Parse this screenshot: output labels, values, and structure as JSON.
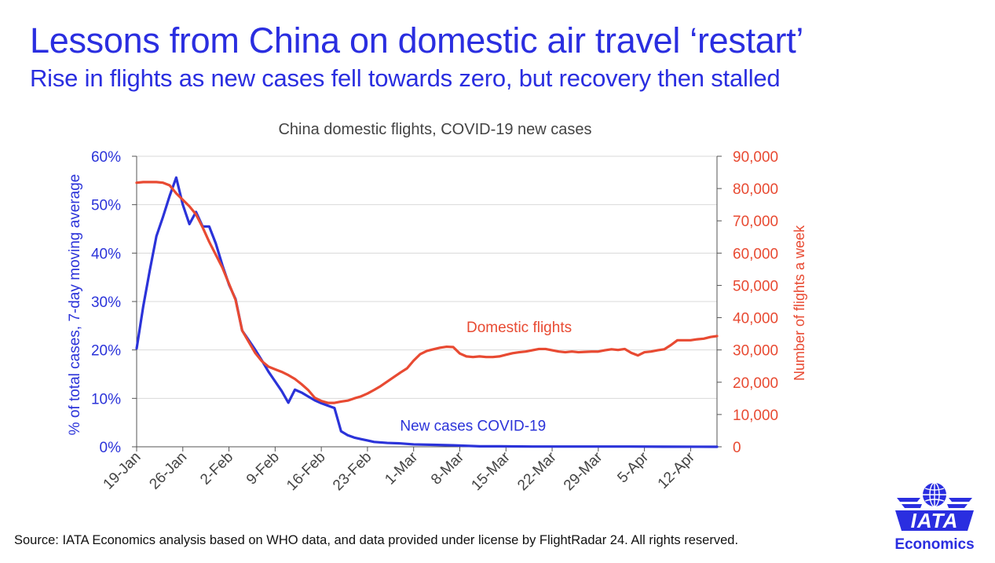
{
  "page": {
    "title": "Lessons from China on domestic air travel ‘restart’",
    "subtitle": "Rise in flights as new cases fell towards zero, but recovery then stalled",
    "source": "Source: IATA Economics analysis based on WHO data, and data provided under license by FlightRadar 24. All rights reserved.",
    "logo": {
      "word": "IATA",
      "sub": "Economics"
    }
  },
  "chart_data": {
    "type": "line",
    "title": "China domestic flights, COVID-19 new cases",
    "x_axis": {
      "start": "19-Jan",
      "end_day": 88,
      "tick_labels": [
        "19-Jan",
        "26-Jan",
        "2-Feb",
        "9-Feb",
        "16-Feb",
        "23-Feb",
        "1-Mar",
        "8-Mar",
        "15-Mar",
        "22-Mar",
        "29-Mar",
        "5-Apr",
        "12-Apr"
      ]
    },
    "y_left": {
      "label": "% of total cases, 7-day moving average",
      "range": [
        0,
        60
      ],
      "ticks": [
        0,
        10,
        20,
        30,
        40,
        50,
        60
      ],
      "tick_labels": [
        "0%",
        "10%",
        "20%",
        "30%",
        "40%",
        "50%",
        "60%"
      ]
    },
    "y_right": {
      "label": "Number of flights a week",
      "range": [
        0,
        90000
      ],
      "ticks": [
        0,
        10000,
        20000,
        30000,
        40000,
        50000,
        60000,
        70000,
        80000,
        90000
      ],
      "tick_labels": [
        "0",
        "10,000",
        "20,000",
        "30,000",
        "40,000",
        "50,000",
        "60,000",
        "70,000",
        "80,000",
        "90,000"
      ]
    },
    "grid": true,
    "series": [
      {
        "name": "New cases COVID-19",
        "axis": "left",
        "color": "#2b33d9",
        "points": [
          [
            0,
            20.3
          ],
          [
            1,
            29.0
          ],
          [
            2,
            36.5
          ],
          [
            3,
            43.5
          ],
          [
            4,
            47.5
          ],
          [
            5,
            51.8
          ],
          [
            6,
            55.6
          ],
          [
            7,
            50.0
          ],
          [
            8,
            46.0
          ],
          [
            9,
            48.5
          ],
          [
            10,
            45.5
          ],
          [
            11,
            45.5
          ],
          [
            12,
            42.0
          ],
          [
            13,
            37.5
          ],
          [
            14,
            33.5
          ],
          [
            15,
            30.5
          ],
          [
            16,
            24.0
          ],
          [
            17,
            22.0
          ],
          [
            18,
            20.0
          ],
          [
            19,
            17.8
          ],
          [
            20,
            15.5
          ],
          [
            21,
            13.5
          ],
          [
            22,
            11.5
          ],
          [
            23,
            9.1
          ],
          [
            24,
            11.8
          ],
          [
            25,
            11.2
          ],
          [
            26,
            10.4
          ],
          [
            27,
            9.6
          ],
          [
            28,
            9.0
          ],
          [
            29,
            8.5
          ],
          [
            30,
            8.0
          ],
          [
            31,
            3.2
          ],
          [
            32,
            2.4
          ],
          [
            33,
            1.9
          ],
          [
            34,
            1.6
          ],
          [
            35,
            1.3
          ],
          [
            36,
            1.0
          ],
          [
            38,
            0.8
          ],
          [
            40,
            0.7
          ],
          [
            42,
            0.5
          ],
          [
            45,
            0.4
          ],
          [
            48,
            0.3
          ],
          [
            50,
            0.2
          ],
          [
            52,
            0.1
          ],
          [
            55,
            0.1
          ],
          [
            60,
            0.05
          ],
          [
            65,
            0.05
          ],
          [
            70,
            0.05
          ],
          [
            75,
            0.05
          ],
          [
            80,
            0.02
          ],
          [
            85,
            0.01
          ],
          [
            88,
            0.0
          ]
        ]
      },
      {
        "name": "Domestic flights",
        "axis": "right",
        "color": "#e84a32",
        "points": [
          [
            0,
            81800
          ],
          [
            1,
            82000
          ],
          [
            2,
            82000
          ],
          [
            3,
            82000
          ],
          [
            4,
            81800
          ],
          [
            5,
            81000
          ],
          [
            6,
            78500
          ],
          [
            7,
            76500
          ],
          [
            8,
            74500
          ],
          [
            9,
            72000
          ],
          [
            10,
            68000
          ],
          [
            11,
            63500
          ],
          [
            12,
            59500
          ],
          [
            13,
            55500
          ],
          [
            14,
            50500
          ],
          [
            15,
            45500
          ],
          [
            16,
            36000
          ],
          [
            17,
            32500
          ],
          [
            18,
            29000
          ],
          [
            19,
            26500
          ],
          [
            20,
            24800
          ],
          [
            21,
            24000
          ],
          [
            22,
            23200
          ],
          [
            23,
            22200
          ],
          [
            24,
            21000
          ],
          [
            25,
            19400
          ],
          [
            26,
            17600
          ],
          [
            27,
            15200
          ],
          [
            28,
            14200
          ],
          [
            29,
            13600
          ],
          [
            30,
            13600
          ],
          [
            31,
            14000
          ],
          [
            32,
            14300
          ],
          [
            33,
            15000
          ],
          [
            34,
            15600
          ],
          [
            35,
            16500
          ],
          [
            36,
            17600
          ],
          [
            37,
            18800
          ],
          [
            38,
            20200
          ],
          [
            39,
            21600
          ],
          [
            40,
            23000
          ],
          [
            41,
            24300
          ],
          [
            42,
            26700
          ],
          [
            43,
            28700
          ],
          [
            44,
            29700
          ],
          [
            45,
            30200
          ],
          [
            46,
            30700
          ],
          [
            47,
            31000
          ],
          [
            48,
            30900
          ],
          [
            49,
            28900
          ],
          [
            50,
            28000
          ],
          [
            51,
            27800
          ],
          [
            52,
            28000
          ],
          [
            53,
            27800
          ],
          [
            54,
            27800
          ],
          [
            55,
            28000
          ],
          [
            56,
            28500
          ],
          [
            57,
            29000
          ],
          [
            58,
            29300
          ],
          [
            59,
            29500
          ],
          [
            60,
            29900
          ],
          [
            61,
            30300
          ],
          [
            62,
            30300
          ],
          [
            63,
            29900
          ],
          [
            64,
            29500
          ],
          [
            65,
            29300
          ],
          [
            66,
            29500
          ],
          [
            67,
            29300
          ],
          [
            68,
            29400
          ],
          [
            69,
            29500
          ],
          [
            70,
            29500
          ],
          [
            71,
            29900
          ],
          [
            72,
            30200
          ],
          [
            73,
            30000
          ],
          [
            74,
            30300
          ],
          [
            75,
            29100
          ],
          [
            76,
            28300
          ],
          [
            77,
            29300
          ],
          [
            78,
            29500
          ],
          [
            79,
            29900
          ],
          [
            80,
            30200
          ],
          [
            81,
            31500
          ],
          [
            82,
            33000
          ],
          [
            83,
            33000
          ],
          [
            84,
            33000
          ],
          [
            85,
            33300
          ],
          [
            86,
            33500
          ],
          [
            87,
            34000
          ],
          [
            88,
            34300
          ]
        ]
      }
    ],
    "annotations": [
      {
        "text": "Domestic flights",
        "series": "Domestic flights",
        "x": 58,
        "y_right": 35500
      },
      {
        "text": "New cases COVID-19",
        "series": "New cases COVID-19",
        "x": 51,
        "y_left": 3.3
      }
    ],
    "colors": {
      "left_axis": "#2b33d9",
      "right_axis": "#e84a32",
      "grid": "#d9d9d9",
      "axis_line": "#555555"
    }
  }
}
